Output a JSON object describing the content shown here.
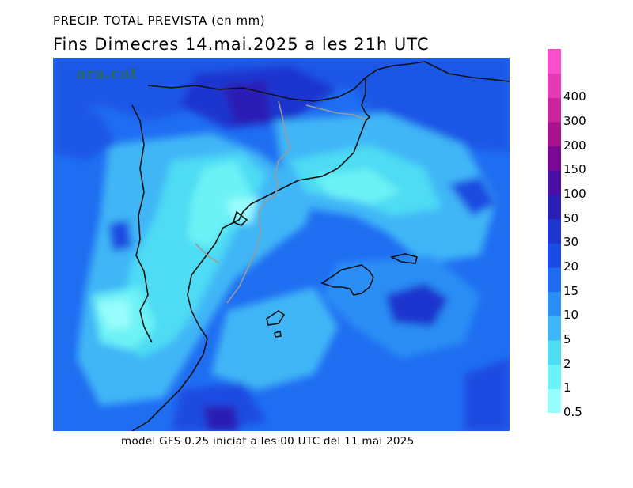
{
  "title": {
    "line1": "PRECIP. TOTAL PREVISTA (en mm)",
    "line2": "Fins Dimecres  14.mai.2025  a les 21h  UTC"
  },
  "footer": "model GFS 0.25 iniciat a les 00 UTC del 11 mai 2025",
  "watermark": "ara.cat",
  "legend": {
    "unit": "mm",
    "levels": [
      {
        "label": "0.5",
        "color": "#99fcfc"
      },
      {
        "label": "1",
        "color": "#6cf2f5"
      },
      {
        "label": "2",
        "color": "#4edcf3"
      },
      {
        "label": "5",
        "color": "#41b6f6"
      },
      {
        "label": "10",
        "color": "#2b8ef5"
      },
      {
        "label": "15",
        "color": "#1e6af0"
      },
      {
        "label": "20",
        "color": "#1a4be2"
      },
      {
        "label": "30",
        "color": "#1e36cf"
      },
      {
        "label": "50",
        "color": "#2a1fb3"
      },
      {
        "label": "100",
        "color": "#4a0fa5"
      },
      {
        "label": "150",
        "color": "#7a0a96"
      },
      {
        "label": "200",
        "color": "#a5148d"
      },
      {
        "label": "300",
        "color": "#c8259a"
      },
      {
        "label": "400",
        "color": "#e43ab5"
      },
      {
        "label": "",
        "color": "#f94fcf"
      }
    ]
  },
  "map": {
    "region": "Catalonia / Balearic Islands / Pyrenees",
    "colors": {
      "background": "#1f6ef2",
      "coast": "#111111",
      "border": "#9a9a9a"
    }
  }
}
